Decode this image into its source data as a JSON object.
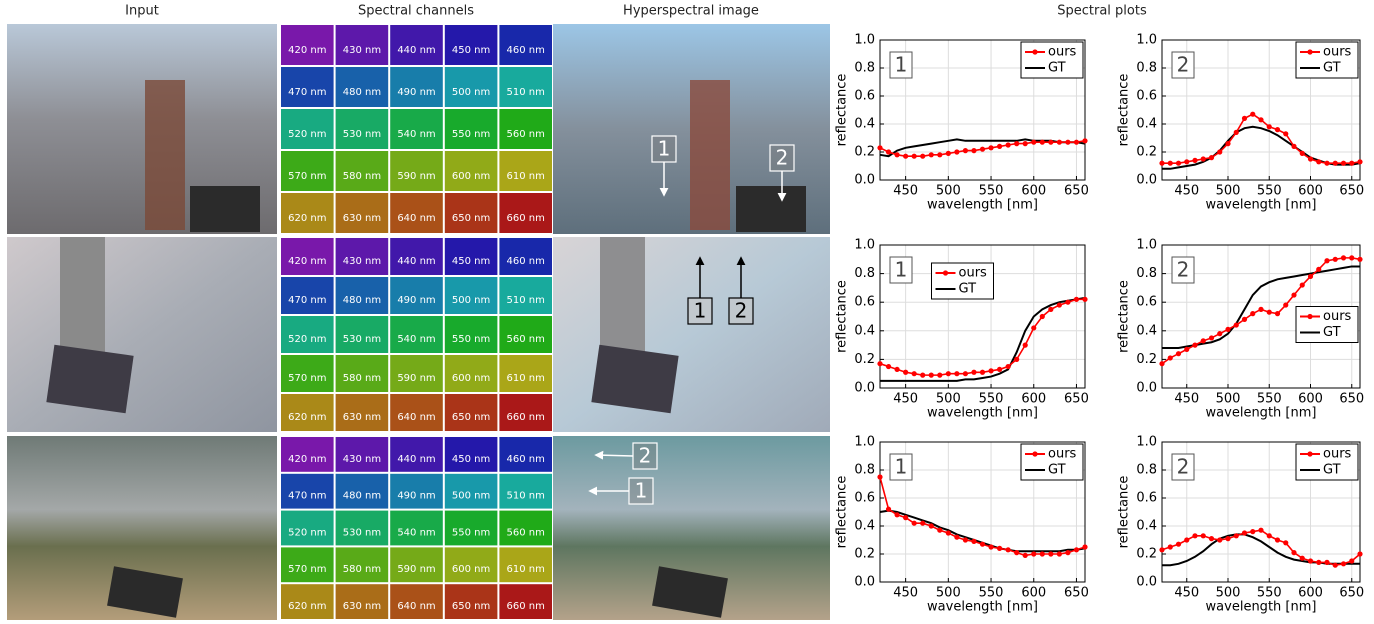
{
  "headers": [
    "Input",
    "Spectral channels",
    "Hyperspectral image",
    "Spectral plots"
  ],
  "channels": [
    "420 nm",
    "430 nm",
    "440 nm",
    "450 nm",
    "460 nm",
    "470 nm",
    "480 nm",
    "490 nm",
    "500 nm",
    "510 nm",
    "520 nm",
    "530 nm",
    "540 nm",
    "550 nm",
    "560 nm",
    "570 nm",
    "580 nm",
    "590 nm",
    "600 nm",
    "610 nm",
    "620 nm",
    "630 nm",
    "640 nm",
    "650 nm",
    "660 nm"
  ],
  "rows": [
    {
      "markers": [
        "1",
        "2"
      ]
    },
    {
      "markers": [
        "1",
        "2"
      ]
    },
    {
      "markers": [
        "1",
        "2"
      ]
    }
  ],
  "chart_data": [
    {
      "type": "line",
      "label": "1",
      "xlabel": "wavelength [nm]",
      "ylabel": "reflectance",
      "legend": "upper right",
      "grid": true,
      "x": [
        420,
        430,
        440,
        450,
        460,
        470,
        480,
        490,
        500,
        510,
        520,
        530,
        540,
        550,
        560,
        570,
        580,
        590,
        600,
        610,
        620,
        630,
        640,
        650,
        660
      ],
      "xlim": [
        420,
        660
      ],
      "xticks": [
        450,
        500,
        550,
        600,
        650
      ],
      "ylim": [
        0,
        1
      ],
      "yticks": [
        {
          "value": 0,
          "label": "0.0"
        },
        0.2,
        0.4,
        0.6,
        0.8,
        {
          "value": 1,
          "label": "1.0"
        }
      ],
      "series": [
        {
          "name": "ours",
          "color": "#ff0000",
          "marker": "o",
          "values": [
            0.23,
            0.2,
            0.18,
            0.17,
            0.17,
            0.17,
            0.18,
            0.18,
            0.19,
            0.2,
            0.21,
            0.21,
            0.22,
            0.23,
            0.24,
            0.25,
            0.26,
            0.26,
            0.27,
            0.27,
            0.27,
            0.27,
            0.27,
            0.27,
            0.28
          ]
        },
        {
          "name": "GT",
          "color": "#000000",
          "values": [
            0.18,
            0.17,
            0.21,
            0.23,
            0.24,
            0.25,
            0.26,
            0.27,
            0.28,
            0.29,
            0.28,
            0.28,
            0.28,
            0.28,
            0.28,
            0.28,
            0.28,
            0.29,
            0.28,
            0.28,
            0.28,
            0.27,
            0.27,
            0.27,
            0.26
          ]
        }
      ]
    },
    {
      "type": "line",
      "label": "2",
      "xlabel": "wavelength [nm]",
      "ylabel": "reflectance",
      "legend": "upper right",
      "grid": true,
      "x": [
        420,
        430,
        440,
        450,
        460,
        470,
        480,
        490,
        500,
        510,
        520,
        530,
        540,
        550,
        560,
        570,
        580,
        590,
        600,
        610,
        620,
        630,
        640,
        650,
        660
      ],
      "xlim": [
        420,
        660
      ],
      "xticks": [
        450,
        500,
        550,
        600,
        650
      ],
      "ylim": [
        0,
        1
      ],
      "yticks": [
        {
          "value": 0,
          "label": "0.0"
        },
        0.2,
        0.4,
        0.6,
        0.8,
        {
          "value": 1,
          "label": "1.0"
        }
      ],
      "series": [
        {
          "name": "ours",
          "color": "#ff0000",
          "marker": "o",
          "values": [
            0.12,
            0.12,
            0.12,
            0.13,
            0.14,
            0.15,
            0.16,
            0.2,
            0.26,
            0.34,
            0.44,
            0.47,
            0.43,
            0.38,
            0.36,
            0.33,
            0.24,
            0.19,
            0.15,
            0.13,
            0.12,
            0.12,
            0.12,
            0.12,
            0.13
          ]
        },
        {
          "name": "GT",
          "color": "#000000",
          "values": [
            0.08,
            0.08,
            0.09,
            0.1,
            0.11,
            0.13,
            0.16,
            0.21,
            0.28,
            0.34,
            0.37,
            0.38,
            0.37,
            0.35,
            0.32,
            0.28,
            0.24,
            0.2,
            0.16,
            0.14,
            0.12,
            0.11,
            0.11,
            0.11,
            0.12
          ]
        }
      ]
    },
    {
      "type": "line",
      "label": "1",
      "xlabel": "wavelength [nm]",
      "ylabel": "reflectance",
      "legend": "upper center",
      "grid": true,
      "x": [
        420,
        430,
        440,
        450,
        460,
        470,
        480,
        490,
        500,
        510,
        520,
        530,
        540,
        550,
        560,
        570,
        580,
        590,
        600,
        610,
        620,
        630,
        640,
        650,
        660
      ],
      "xlim": [
        420,
        660
      ],
      "xticks": [
        450,
        500,
        550,
        600,
        650
      ],
      "ylim": [
        0,
        1
      ],
      "yticks": [
        {
          "value": 0,
          "label": "0.0"
        },
        0.2,
        0.4,
        0.6,
        0.8,
        {
          "value": 1,
          "label": "1.0"
        }
      ],
      "series": [
        {
          "name": "ours",
          "color": "#ff0000",
          "marker": "o",
          "values": [
            0.17,
            0.15,
            0.13,
            0.11,
            0.1,
            0.09,
            0.09,
            0.09,
            0.1,
            0.1,
            0.1,
            0.11,
            0.11,
            0.12,
            0.13,
            0.15,
            0.2,
            0.3,
            0.42,
            0.5,
            0.55,
            0.58,
            0.6,
            0.62,
            0.62
          ]
        },
        {
          "name": "GT",
          "color": "#000000",
          "values": [
            0.05,
            0.05,
            0.05,
            0.05,
            0.05,
            0.05,
            0.05,
            0.05,
            0.05,
            0.05,
            0.06,
            0.06,
            0.07,
            0.08,
            0.1,
            0.13,
            0.25,
            0.4,
            0.5,
            0.55,
            0.58,
            0.6,
            0.61,
            0.62,
            0.63
          ]
        }
      ]
    },
    {
      "type": "line",
      "label": "2",
      "xlabel": "wavelength [nm]",
      "ylabel": "reflectance",
      "legend": "center right",
      "grid": true,
      "x": [
        420,
        430,
        440,
        450,
        460,
        470,
        480,
        490,
        500,
        510,
        520,
        530,
        540,
        550,
        560,
        570,
        580,
        590,
        600,
        610,
        620,
        630,
        640,
        650,
        660
      ],
      "xlim": [
        420,
        660
      ],
      "xticks": [
        450,
        500,
        550,
        600,
        650
      ],
      "ylim": [
        0,
        1
      ],
      "yticks": [
        {
          "value": 0,
          "label": "0.0"
        },
        0.2,
        0.4,
        0.6,
        0.8,
        {
          "value": 1,
          "label": "1.0"
        }
      ],
      "series": [
        {
          "name": "ours",
          "color": "#ff0000",
          "marker": "o",
          "values": [
            0.17,
            0.21,
            0.24,
            0.27,
            0.3,
            0.33,
            0.35,
            0.38,
            0.41,
            0.44,
            0.48,
            0.52,
            0.55,
            0.53,
            0.52,
            0.58,
            0.65,
            0.72,
            0.78,
            0.83,
            0.89,
            0.9,
            0.91,
            0.91,
            0.9
          ]
        },
        {
          "name": "GT",
          "color": "#000000",
          "values": [
            0.28,
            0.28,
            0.28,
            0.29,
            0.3,
            0.31,
            0.32,
            0.34,
            0.38,
            0.45,
            0.55,
            0.65,
            0.71,
            0.74,
            0.76,
            0.77,
            0.78,
            0.79,
            0.8,
            0.81,
            0.82,
            0.83,
            0.84,
            0.85,
            0.85
          ]
        }
      ]
    },
    {
      "type": "line",
      "label": "1",
      "xlabel": "wavelength [nm]",
      "ylabel": "reflectance",
      "legend": "upper right",
      "grid": true,
      "x": [
        420,
        430,
        440,
        450,
        460,
        470,
        480,
        490,
        500,
        510,
        520,
        530,
        540,
        550,
        560,
        570,
        580,
        590,
        600,
        610,
        620,
        630,
        640,
        650,
        660
      ],
      "xlim": [
        420,
        660
      ],
      "xticks": [
        450,
        500,
        550,
        600,
        650
      ],
      "ylim": [
        0,
        1
      ],
      "yticks": [
        {
          "value": 0,
          "label": "0.0"
        },
        0.2,
        0.4,
        0.6,
        0.8,
        {
          "value": 1,
          "label": "1.0"
        }
      ],
      "series": [
        {
          "name": "ours",
          "color": "#ff0000",
          "marker": "o",
          "values": [
            0.75,
            0.52,
            0.48,
            0.46,
            0.42,
            0.42,
            0.4,
            0.37,
            0.35,
            0.32,
            0.3,
            0.29,
            0.27,
            0.25,
            0.24,
            0.23,
            0.21,
            0.19,
            0.2,
            0.2,
            0.2,
            0.2,
            0.21,
            0.23,
            0.25
          ]
        },
        {
          "name": "GT",
          "color": "#000000",
          "values": [
            0.5,
            0.51,
            0.5,
            0.48,
            0.46,
            0.44,
            0.42,
            0.39,
            0.37,
            0.34,
            0.32,
            0.3,
            0.28,
            0.26,
            0.24,
            0.23,
            0.22,
            0.22,
            0.22,
            0.22,
            0.22,
            0.22,
            0.23,
            0.23,
            0.24
          ]
        }
      ]
    },
    {
      "type": "line",
      "label": "2",
      "xlabel": "wavelength [nm]",
      "ylabel": "reflectance",
      "legend": "upper right",
      "grid": true,
      "x": [
        420,
        430,
        440,
        450,
        460,
        470,
        480,
        490,
        500,
        510,
        520,
        530,
        540,
        550,
        560,
        570,
        580,
        590,
        600,
        610,
        620,
        630,
        640,
        650,
        660
      ],
      "xlim": [
        420,
        660
      ],
      "xticks": [
        450,
        500,
        550,
        600,
        650
      ],
      "ylim": [
        0,
        1
      ],
      "yticks": [
        {
          "value": 0,
          "label": "0.0"
        },
        0.2,
        0.4,
        0.6,
        0.8,
        {
          "value": 1,
          "label": "1.0"
        }
      ],
      "series": [
        {
          "name": "ours",
          "color": "#ff0000",
          "marker": "o",
          "values": [
            0.23,
            0.25,
            0.27,
            0.3,
            0.33,
            0.33,
            0.31,
            0.3,
            0.31,
            0.33,
            0.35,
            0.36,
            0.37,
            0.33,
            0.3,
            0.28,
            0.21,
            0.17,
            0.15,
            0.14,
            0.14,
            0.12,
            0.13,
            0.15,
            0.2
          ]
        },
        {
          "name": "GT",
          "color": "#000000",
          "values": [
            0.12,
            0.12,
            0.13,
            0.15,
            0.18,
            0.22,
            0.27,
            0.31,
            0.33,
            0.34,
            0.34,
            0.32,
            0.29,
            0.25,
            0.21,
            0.18,
            0.16,
            0.15,
            0.14,
            0.14,
            0.13,
            0.13,
            0.13,
            0.13,
            0.13
          ]
        }
      ]
    }
  ]
}
